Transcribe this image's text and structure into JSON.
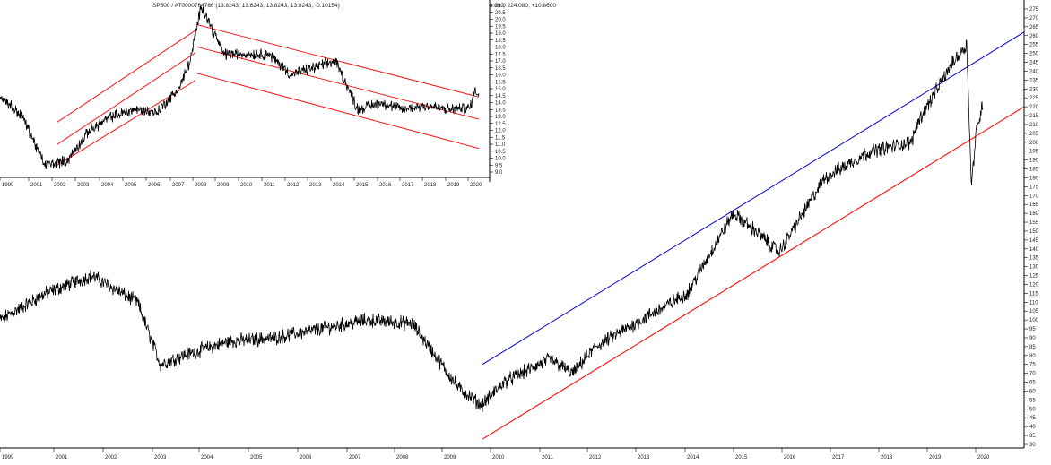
{
  "main_chart": {
    "header": "0,218.890, 224.080, +10.8600",
    "y_ticks": [
      30,
      35,
      40,
      45,
      50,
      55,
      60,
      65,
      70,
      75,
      80,
      85,
      90,
      95,
      100,
      105,
      110,
      115,
      120,
      125,
      130,
      135,
      140,
      145,
      150,
      155,
      160,
      165,
      170,
      175,
      180,
      185,
      190,
      195,
      200,
      205,
      210,
      215,
      220,
      225,
      230,
      235,
      240,
      245,
      250,
      255,
      260,
      265,
      270,
      275
    ],
    "x_labels": [
      "1999",
      "2001",
      "2002",
      "2003",
      "2004",
      "2005",
      "2006",
      "2007",
      "2008",
      "2009",
      "2010",
      "2011",
      "2012",
      "2013",
      "2014",
      "2015",
      "2016",
      "2017",
      "2018",
      "2019",
      "2020"
    ],
    "colors": {
      "price": "#000000",
      "upper_channel": "#0000cc",
      "lower_channel": "#ff0000"
    }
  },
  "inset_chart": {
    "header": "SP500 / AT0000764766 (13.8243, 13.8243, 13.8243, 13.8243, -0.10154)",
    "y_ticks": [
      "9.0",
      "9.5",
      "10.0",
      "10.5",
      "11.0",
      "11.5",
      "12.0",
      "12.5",
      "13.0",
      "13.5",
      "14.0",
      "14.5",
      "15.0",
      "15.5",
      "16.0",
      "16.5",
      "17.0",
      "17.5",
      "18.0",
      "18.5",
      "19.0",
      "19.5",
      "20.0",
      "20.5",
      "21.0"
    ],
    "x_labels": [
      "1999",
      "2001",
      "2002",
      "2003",
      "2004",
      "2005",
      "2006",
      "2007",
      "2008",
      "2009",
      "2010",
      "2011",
      "2012",
      "2013",
      "2014",
      "2015",
      "2016",
      "2017",
      "2018",
      "2019",
      "2020"
    ],
    "colors": {
      "ratio": "#000000",
      "channel": "#ff0000"
    }
  },
  "chart_data": [
    {
      "type": "line",
      "series": [
        {
          "x": [
            "1999",
            "2000",
            "2001",
            "2002",
            "2002.5",
            "2003",
            "2004",
            "2005",
            "2006",
            "2007",
            "2008",
            "2008.5",
            "2009",
            "2009.5",
            "2010",
            "2011",
            "2011.5",
            "2012",
            "2013",
            "2014",
            "2015",
            "2015.5",
            "2016",
            "2017",
            "2018",
            "2018.9",
            "2019",
            "2019.8",
            "2020.1",
            "2020.2",
            "2020.3",
            "2020.45"
          ],
          "y": [
            100,
            115,
            125,
            110,
            75,
            80,
            88,
            90,
            95,
            100,
            98,
            80,
            62,
            52,
            65,
            78,
            70,
            85,
            100,
            115,
            160,
            150,
            138,
            180,
            195,
            200,
            210,
            245,
            255,
            175,
            205,
            222
          ]
        }
      ],
      "ylim": [
        30,
        275
      ],
      "grid": false
    },
    {
      "type": "line",
      "series": [
        {
          "x": [
            "1999",
            "2000",
            "2001",
            "2002",
            "2003",
            "2004",
            "2005",
            "2006",
            "2007",
            "2007.5",
            "2008",
            "2009",
            "2010",
            "2011",
            "2012",
            "2013",
            "2014",
            "2015",
            "2016",
            "2017",
            "2018",
            "2019",
            "2020",
            "2020.25",
            "2020.4"
          ],
          "y": [
            14.5,
            13.0,
            9.5,
            9.8,
            12.0,
            13.0,
            13.5,
            13.3,
            15.0,
            17.0,
            21.0,
            17.5,
            17.5,
            17.5,
            16.0,
            16.5,
            17.0,
            13.5,
            14.0,
            13.5,
            13.8,
            13.5,
            13.6,
            15.0,
            14.5
          ]
        }
      ],
      "ylim": [
        9.0,
        21.0
      ],
      "grid": false
    }
  ]
}
